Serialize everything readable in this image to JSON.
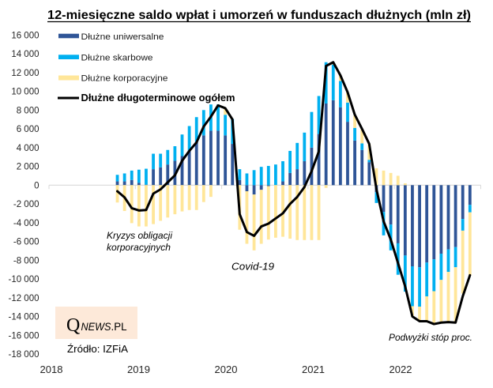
{
  "chart_data": {
    "type": "bar",
    "stacked": true,
    "title": "12-miesięczne saldo wpłat i umorzeń w funduszach dłużnych (mln zł)",
    "xlabel": "",
    "ylabel": "",
    "xlim": [
      "2018-01",
      "2022-12"
    ],
    "xticks": [
      "2018",
      "2019",
      "2020",
      "2021",
      "2022"
    ],
    "ylim": [
      -18000,
      16000
    ],
    "yticks": [
      16000,
      14000,
      12000,
      10000,
      8000,
      6000,
      4000,
      2000,
      0,
      -2000,
      -4000,
      -6000,
      -8000,
      -10000,
      -12000,
      -14000,
      -16000,
      -18000
    ],
    "ytick_labels": [
      "16 000",
      "14 000",
      "12 000",
      "10 000",
      "8 000",
      "6 000",
      "4 000",
      "2 000",
      "0",
      "-2 000",
      "-4 000",
      "-6 000",
      "-8 000",
      "-10 000",
      "-12 000",
      "-14 000",
      "-16 000",
      "-18 000"
    ],
    "grid": false,
    "legend": "top-left",
    "x": [
      "2018-10",
      "2018-11",
      "2018-12",
      "2019-01",
      "2019-02",
      "2019-03",
      "2019-04",
      "2019-05",
      "2019-06",
      "2019-07",
      "2019-08",
      "2019-09",
      "2019-10",
      "2019-11",
      "2019-12",
      "2020-01",
      "2020-02",
      "2020-03",
      "2020-04",
      "2020-05",
      "2020-06",
      "2020-07",
      "2020-08",
      "2020-09",
      "2020-10",
      "2020-11",
      "2020-12",
      "2021-01",
      "2021-02",
      "2021-03",
      "2021-04",
      "2021-05",
      "2021-06",
      "2021-07",
      "2021-08",
      "2021-09",
      "2021-10",
      "2021-11",
      "2021-12",
      "2022-01",
      "2022-02",
      "2022-03",
      "2022-04",
      "2022-05",
      "2022-06",
      "2022-07",
      "2022-08",
      "2022-09",
      "2022-10",
      "2022-11"
    ],
    "series": [
      {
        "name": "Dłużne uniwersalne",
        "type": "bar",
        "color": "#2F5597",
        "values": [
          400,
          400,
          550,
          250,
          50,
          1700,
          1900,
          2200,
          2600,
          3100,
          3700,
          4600,
          5300,
          5800,
          5800,
          5300,
          4400,
          550,
          -650,
          -1000,
          -500,
          -100,
          0,
          400,
          1300,
          1700,
          2550,
          4000,
          5450,
          8700,
          9050,
          8300,
          6750,
          4750,
          3750,
          2450,
          -750,
          -2850,
          -4200,
          -6200,
          -7500,
          -8650,
          -8750,
          -8250,
          -7900,
          -7300,
          -6850,
          -6600,
          -3600,
          -2100
        ]
      },
      {
        "name": "Dłużne skarbowe",
        "type": "bar",
        "color": "#00B0F0",
        "values": [
          700,
          850,
          1000,
          1400,
          1700,
          1650,
          1450,
          1550,
          1550,
          2300,
          2600,
          2650,
          2700,
          2800,
          2800,
          2200,
          2650,
          1150,
          1250,
          1600,
          1950,
          2050,
          2200,
          2150,
          2350,
          2800,
          3050,
          3800,
          4050,
          4400,
          3800,
          2800,
          2050,
          1350,
          700,
          250,
          -1150,
          -2500,
          -2750,
          -3350,
          -3850,
          -4250,
          -4200,
          -3600,
          -3400,
          -2800,
          -2400,
          -2150,
          -1250,
          -800
        ]
      },
      {
        "name": "Dłużne korporacyjne",
        "type": "bar",
        "color": "#FFE699",
        "values": [
          -1850,
          -2750,
          -4050,
          -4400,
          -4400,
          -4150,
          -3800,
          -3450,
          -3100,
          -2800,
          -2650,
          -2650,
          -1800,
          -1250,
          0,
          600,
          0,
          -4750,
          -5600,
          -5950,
          -5750,
          -5700,
          -5600,
          -5500,
          -5700,
          -5850,
          -5850,
          -5850,
          -5850,
          -300,
          200,
          600,
          1100,
          1300,
          1500,
          1650,
          1800,
          1550,
          1300,
          1000,
          200,
          -1100,
          -1550,
          -2550,
          -3500,
          -4550,
          -5350,
          -5850,
          -6700,
          -6700
        ]
      },
      {
        "name": "Dłużne długoterminowe ogółem",
        "type": "line",
        "color": "#000000",
        "values": [
          -650,
          -1300,
          -2450,
          -2700,
          -2650,
          -900,
          -450,
          300,
          1050,
          2600,
          3650,
          4550,
          6250,
          7300,
          8500,
          8200,
          7000,
          -3100,
          -5000,
          -5400,
          -4400,
          -4100,
          -3550,
          -3000,
          -2000,
          -1250,
          -200,
          1500,
          3600,
          12700,
          13100,
          11700,
          9900,
          7500,
          6000,
          4400,
          -400,
          -3850,
          -5800,
          -8300,
          -10800,
          -14000,
          -14500,
          -14500,
          -14800,
          -14650,
          -14600,
          -14650,
          -11850,
          -9600
        ]
      }
    ],
    "annotations": [
      {
        "lines": [
          "Kryzys obligacji",
          "korporacyjnych"
        ]
      },
      {
        "lines": [
          "Covid-19"
        ]
      },
      {
        "lines": [
          "Podwyżki stóp proc."
        ]
      }
    ]
  },
  "logo": {
    "q": "Q",
    "news": "NEWS",
    "pl": ".PL",
    "background": "#FDE9D9"
  },
  "source": "Źródło: IZFiA"
}
